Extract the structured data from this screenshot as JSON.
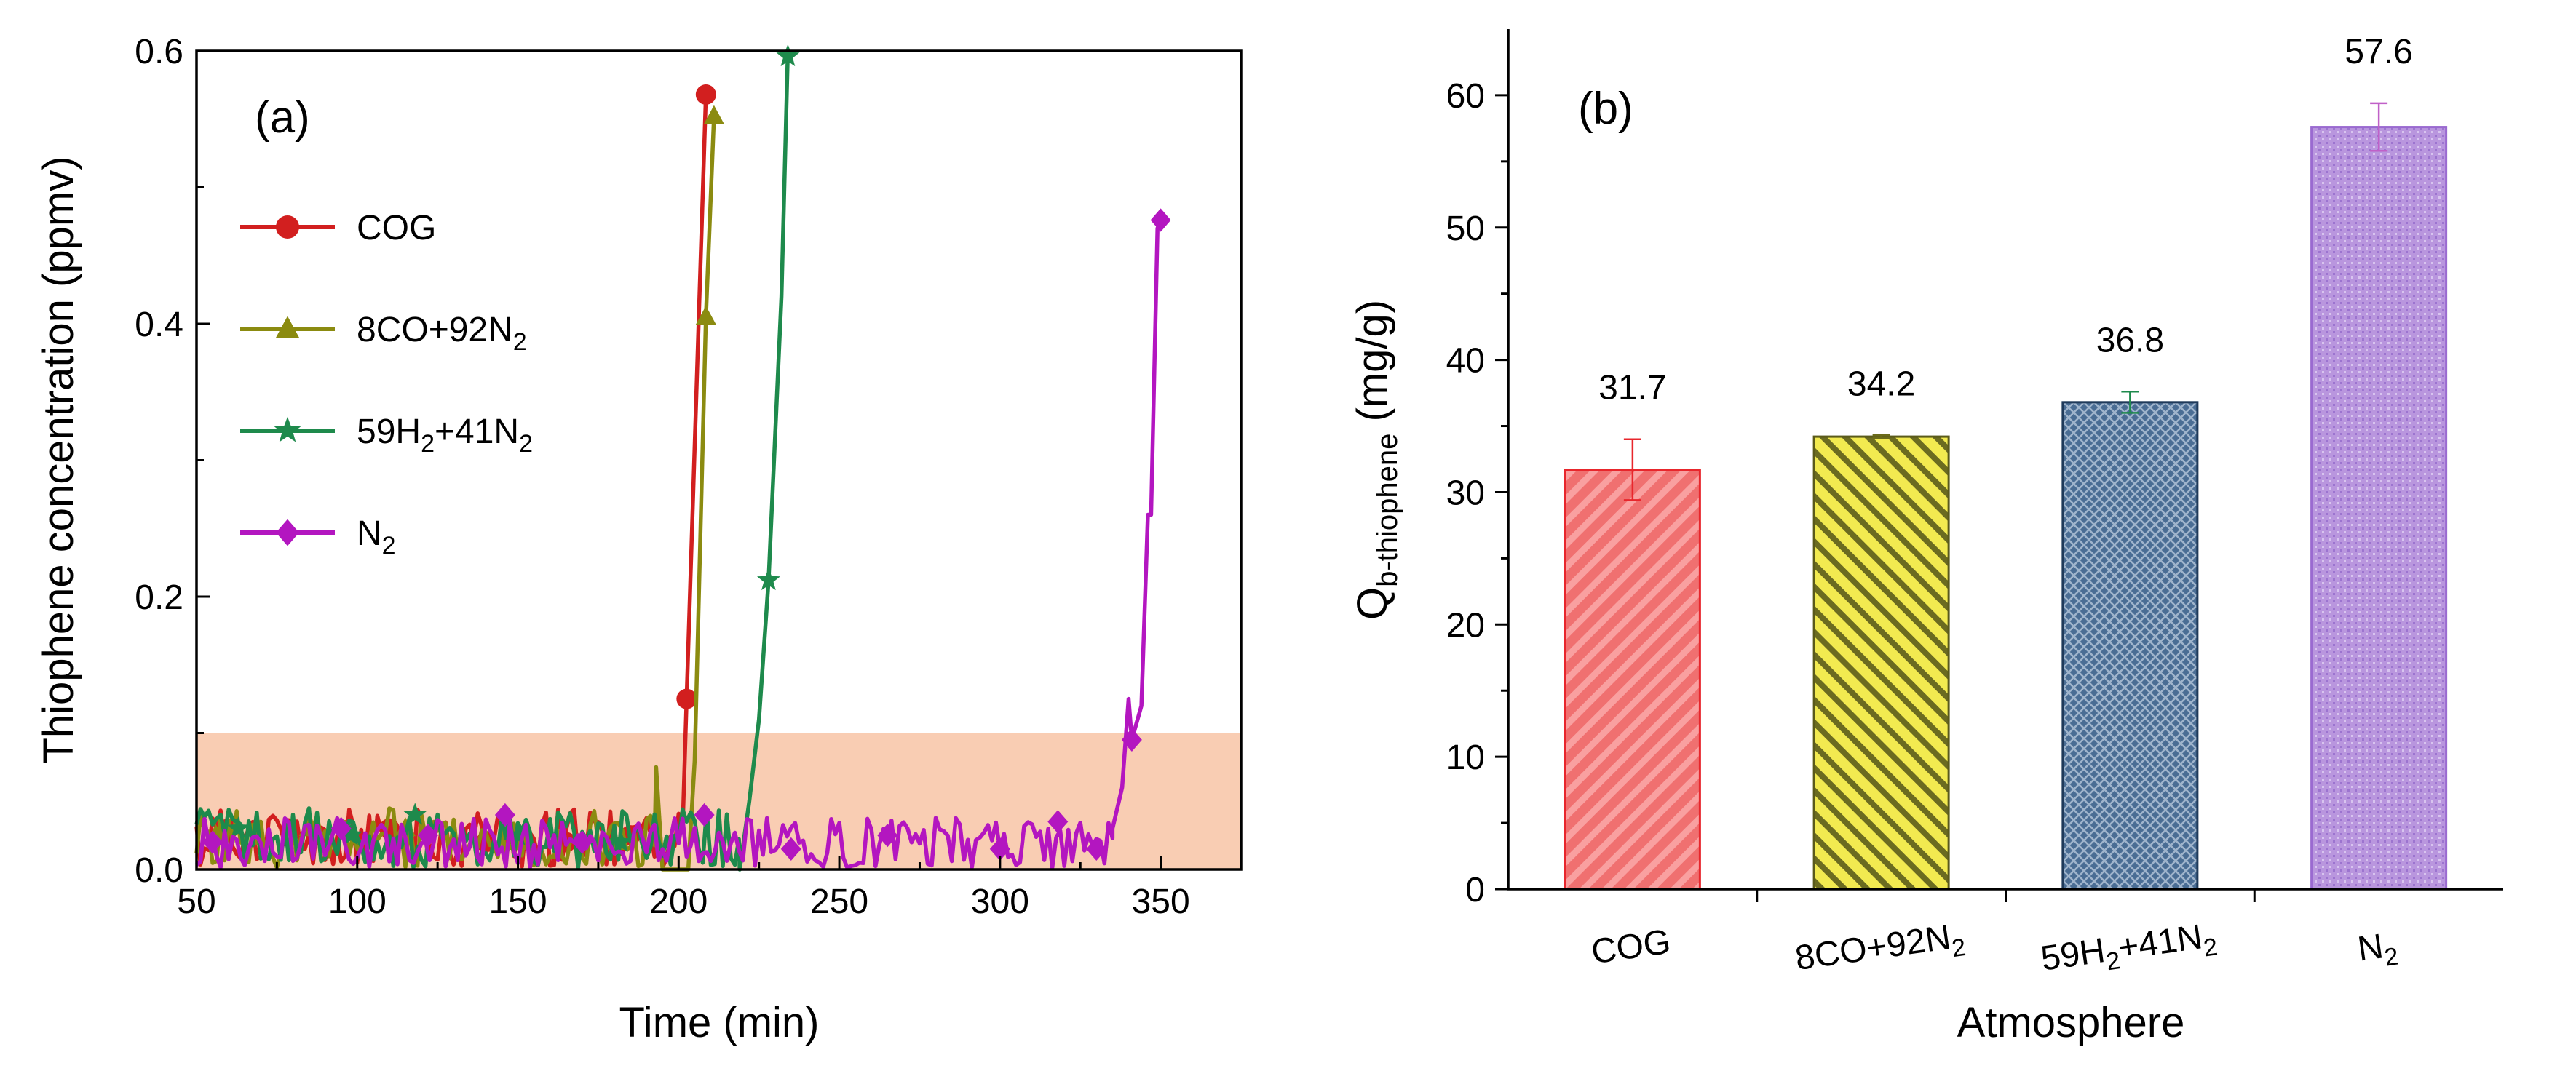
{
  "chart_data": [
    {
      "type": "line",
      "panel_label": "(a)",
      "xlabel": "Time (min)",
      "ylabel": "Thiophene concentration (ppmv)",
      "xlim": [
        50,
        375
      ],
      "ylim": [
        0,
        0.6
      ],
      "xticks": [
        "50",
        "100",
        "150",
        "200",
        "250",
        "300",
        "350"
      ],
      "yticks": [
        "0.0",
        "0.2",
        "0.4",
        "0.6"
      ],
      "shaded_band": {
        "y_from": 0,
        "y_to": 0.1,
        "color": "#f9cdb3"
      },
      "legend_position": "upper-left",
      "series": [
        {
          "name": "COG",
          "legend": [
            "COG",
            "",
            ""
          ],
          "color": "#d21f1f",
          "marker": "circle",
          "breakthrough": [
            [
              202.5,
              0.125
            ],
            [
              208.5,
              0.568
            ]
          ],
          "noise": {
            "from": 50,
            "to": 202,
            "seed": 11,
            "amp": 0.045
          },
          "marker_points": [
            [
              60,
              0.03
            ],
            [
              88,
              0.025
            ],
            [
              110,
              0.03
            ],
            [
              140,
              0.02
            ],
            [
              165,
              0.02
            ],
            [
              185,
              0.025
            ],
            [
              202.5,
              0.125
            ],
            [
              208.5,
              0.568
            ]
          ]
        },
        {
          "name": "8CO+92N2",
          "legend": [
            "8CO+92N",
            "2",
            ""
          ],
          "color": "#8b8b10",
          "marker": "triangle",
          "breakthrough": [
            [
              193,
              0.075
            ],
            [
              195,
              0.0
            ],
            [
              203,
              0.0
            ],
            [
              205,
              0.08
            ],
            [
              208.5,
              0.405
            ],
            [
              211,
              0.552
            ]
          ],
          "noise": {
            "from": 50,
            "to": 193,
            "seed": 23,
            "amp": 0.045
          },
          "marker_points": [
            [
              56,
              0.025
            ],
            [
              85,
              0.03
            ],
            [
              115,
              0.03
            ],
            [
              150,
              0.02
            ],
            [
              180,
              0.02
            ],
            [
              208.5,
              0.405
            ],
            [
              211,
              0.552
            ]
          ]
        },
        {
          "name": "59H2+41N2",
          "legend": [
            "59H",
            "2",
            "+41N",
            "2"
          ],
          "color": "#1e8a4c",
          "marker": "star",
          "breakthrough": [
            [
              219,
              0.0
            ],
            [
              222,
              0.05
            ],
            [
              225,
              0.11
            ],
            [
              228,
              0.212
            ],
            [
              232,
              0.42
            ],
            [
              234,
              0.6
            ]
          ],
          "noise": {
            "from": 50,
            "to": 219,
            "seed": 37,
            "amp": 0.045
          },
          "marker_points": [
            [
              63,
              0.03
            ],
            [
              98,
              0.025
            ],
            [
              118,
              0.04
            ],
            [
              150,
              0.025
            ],
            [
              182,
              0.02
            ],
            [
              228,
              0.212
            ],
            [
              234,
              0.596
            ]
          ]
        },
        {
          "name": "N2",
          "legend": [
            "N",
            "2",
            ""
          ],
          "color": "#b316c0",
          "marker": "diamond",
          "breakthrough": [
            [
              335,
              0.03
            ],
            [
              338,
              0.06
            ],
            [
              340,
              0.125
            ],
            [
              341,
              0.095
            ],
            [
              344,
              0.12
            ],
            [
              346,
              0.26
            ],
            [
              347,
              0.26
            ],
            [
              349,
              0.47
            ],
            [
              350,
              0.476
            ]
          ],
          "noise": {
            "from": 50,
            "to": 335,
            "seed": 53,
            "amp": 0.038
          },
          "marker_points": [
            [
              55,
              0.02
            ],
            [
              95,
              0.03
            ],
            [
              122,
              0.025
            ],
            [
              146,
              0.04
            ],
            [
              170,
              0.02
            ],
            [
              208,
              0.04
            ],
            [
              235,
              0.015
            ],
            [
              265,
              0.025
            ],
            [
              300,
              0.015
            ],
            [
              318,
              0.035
            ],
            [
              330,
              0.015
            ],
            [
              341,
              0.095
            ],
            [
              350,
              0.476
            ]
          ]
        }
      ]
    },
    {
      "type": "bar",
      "panel_label": "(b)",
      "xlabel": "Atmosphere",
      "ylabel_main": "Q",
      "ylabel_sub": "b-thiophene",
      "ylabel_unit": " (mg/g)",
      "ylim": [
        0,
        65
      ],
      "yticks": [
        "0",
        "10",
        "20",
        "30",
        "40",
        "50",
        "60"
      ],
      "categories": [
        {
          "parts": [
            "COG",
            "",
            "",
            ""
          ]
        },
        {
          "parts": [
            "8CO+92N",
            "2",
            "",
            ""
          ]
        },
        {
          "parts": [
            "59H",
            "2",
            "+41N",
            "2"
          ]
        },
        {
          "parts": [
            "N",
            "2",
            "",
            ""
          ]
        }
      ],
      "values": [
        31.7,
        34.2,
        36.8,
        57.6
      ],
      "value_labels": [
        "31.7",
        "34.2",
        "36.8",
        "57.6"
      ],
      "errors": [
        2.3,
        0.1,
        0.8,
        1.8
      ],
      "colors": [
        "#f07070",
        "#e8e04a",
        "#3d5f88",
        "#b590dc"
      ],
      "stroke_colors": [
        "#e8262c",
        "#5a5a1a",
        "#1f3a5a",
        "#9a6ad0"
      ],
      "error_colors": [
        "#e8262c",
        "#6b6b1a",
        "#1e8a4c",
        "#c060c8"
      ]
    }
  ]
}
